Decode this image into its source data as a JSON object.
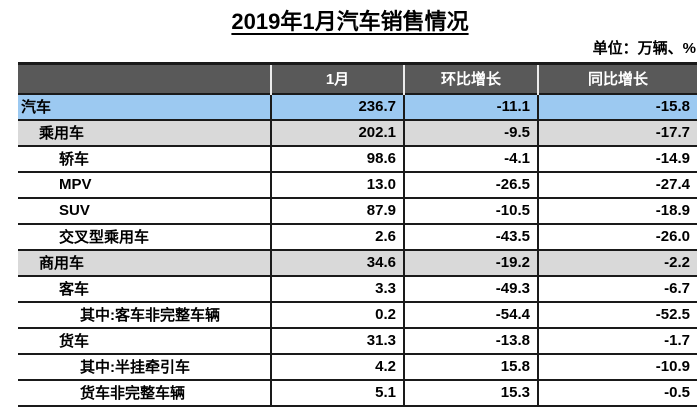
{
  "chart_data": {
    "type": "table",
    "title": "2019年1月汽车销售情况",
    "unit_label": "单位：万辆、%",
    "columns": [
      "",
      "1月",
      "环比增长",
      "同比增长"
    ],
    "rows": [
      {
        "label": "汽车",
        "values": [
          "236.7",
          "-11.1",
          "-15.8"
        ],
        "indent": 0,
        "row_style": "total"
      },
      {
        "label": "乘用车",
        "values": [
          "202.1",
          "-9.5",
          "-17.7"
        ],
        "indent": 1,
        "row_style": "subtotal"
      },
      {
        "label": "轿车",
        "values": [
          "98.6",
          "-4.1",
          "-14.9"
        ],
        "indent": 2,
        "row_style": "normal"
      },
      {
        "label": "MPV",
        "values": [
          "13.0",
          "-26.5",
          "-27.4"
        ],
        "indent": 2,
        "row_style": "normal"
      },
      {
        "label": "SUV",
        "values": [
          "87.9",
          "-10.5",
          "-18.9"
        ],
        "indent": 2,
        "row_style": "normal"
      },
      {
        "label": "交叉型乘用车",
        "values": [
          "2.6",
          "-43.5",
          "-26.0"
        ],
        "indent": 2,
        "row_style": "normal"
      },
      {
        "label": "商用车",
        "values": [
          "34.6",
          "-19.2",
          "-2.2"
        ],
        "indent": 1,
        "row_style": "subtotal"
      },
      {
        "label": "客车",
        "values": [
          "3.3",
          "-49.3",
          "-6.7"
        ],
        "indent": 2,
        "row_style": "normal"
      },
      {
        "label": "其中:客车非完整车辆",
        "values": [
          "0.2",
          "-54.4",
          "-52.5"
        ],
        "indent": 3,
        "row_style": "normal"
      },
      {
        "label": "货车",
        "values": [
          "31.3",
          "-13.8",
          "-1.7"
        ],
        "indent": 2,
        "row_style": "normal"
      },
      {
        "label": "其中:半挂牵引车",
        "values": [
          "4.2",
          "15.8",
          "-10.9"
        ],
        "indent": 3,
        "row_style": "normal"
      },
      {
        "label": "货车非完整车辆",
        "values": [
          "5.1",
          "15.3",
          "-0.5"
        ],
        "indent": 3,
        "row_style": "normal"
      }
    ],
    "colors": {
      "header_bg": "#595959",
      "header_text": "#ffffff",
      "total_row_bg": "#9cc9f1",
      "subtotal_row_bg": "#d9d9d9",
      "text": "#000000",
      "border": "#1a1a1a"
    },
    "layout": {
      "grid": true,
      "value_alignment": "right",
      "title_underlined": true,
      "unit_note_position": "top-right"
    }
  }
}
